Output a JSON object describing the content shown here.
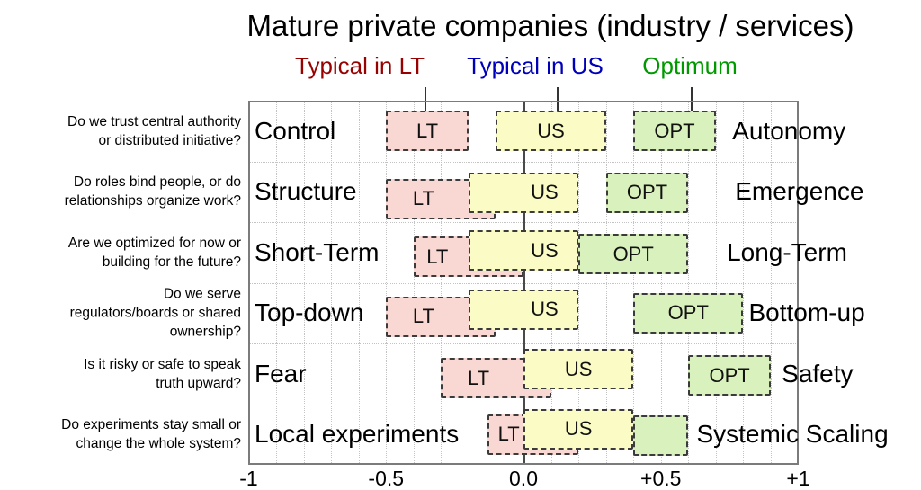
{
  "chart_data": {
    "type": "range-bar",
    "title": "Mature private companies (industry / services)",
    "x_axis": {
      "min": -1,
      "max": 1,
      "tick_values": [
        -1,
        -0.5,
        0,
        0.5,
        1
      ],
      "tick_labels": [
        "-1",
        "-0.5",
        "0.0",
        "+0.5",
        "+1"
      ],
      "grid": "dotted vertical lines every 0.1, dotted horizontal row separators",
      "zero_line": true
    },
    "legend": [
      {
        "series": "LT",
        "label": "Typical in LT",
        "color": "#990000"
      },
      {
        "series": "US",
        "label": "Typical in US",
        "color": "#0000bb"
      },
      {
        "series": "OPT",
        "label": "Optimum",
        "color": "#009900"
      }
    ],
    "legend_leader_lines_x": [
      -0.36,
      0.12,
      0.61
    ],
    "series_styles": {
      "LT": {
        "fill": "#f9d8d3",
        "border": "#3b3b3b"
      },
      "US": {
        "fill": "#fbfbc6",
        "border": "#3b3b3b"
      },
      "OPT": {
        "fill": "#d9f1bd",
        "border": "#3b3b3b"
      }
    },
    "rows": [
      {
        "question": [
          "Do we trust central authority",
          "or distributed initiative?"
        ],
        "left_label": "Control",
        "right_label": "Autonomy",
        "right_label_x": 0.76,
        "boxes": [
          {
            "series": "LT",
            "label": "LT",
            "start": -0.5,
            "end": -0.2,
            "dy": 0
          },
          {
            "series": "US",
            "label": "US",
            "start": -0.1,
            "end": 0.3,
            "dy": 0
          },
          {
            "series": "OPT",
            "label": "OPT",
            "start": 0.4,
            "end": 0.7,
            "dy": 0
          }
        ]
      },
      {
        "question": [
          "Do roles bind people, or do",
          "relationships organize work?"
        ],
        "left_label": "Structure",
        "right_label": "Emergence",
        "right_label_x": 0.77,
        "boxes": [
          {
            "series": "LT",
            "label": "LT",
            "start": -0.5,
            "end": -0.1,
            "dy": 8,
            "label_x": -0.37
          },
          {
            "series": "US",
            "label": "US",
            "start": -0.2,
            "end": 0.2,
            "dy": 1,
            "label_x": 0.07
          },
          {
            "series": "OPT",
            "label": "OPT",
            "start": 0.3,
            "end": 0.6,
            "dy": 1
          }
        ]
      },
      {
        "question": [
          "Are we optimized for now or",
          "building for the future?"
        ],
        "left_label": "Short-Term",
        "right_label": "Long-Term",
        "right_label_x": 0.74,
        "boxes": [
          {
            "series": "LT",
            "label": "LT",
            "start": -0.4,
            "end": 0.0,
            "dy": 5,
            "label_x": -0.32
          },
          {
            "series": "US",
            "label": "US",
            "start": -0.2,
            "end": 0.2,
            "dy": -2,
            "label_x": 0.07
          },
          {
            "series": "OPT",
            "label": "OPT",
            "start": 0.2,
            "end": 0.6,
            "dy": 2
          }
        ]
      },
      {
        "question": [
          "Do we serve",
          "regulators/boards or shared",
          "ownership?"
        ],
        "left_label": "Top-down",
        "right_label": "Bottom-up",
        "right_label_x": 0.82,
        "boxes": [
          {
            "series": "LT",
            "label": "LT",
            "start": -0.5,
            "end": -0.1,
            "dy": 4,
            "label_x": -0.37
          },
          {
            "series": "US",
            "label": "US",
            "start": -0.2,
            "end": 0.2,
            "dy": -4,
            "label_x": 0.07
          },
          {
            "series": "OPT",
            "label": "OPT",
            "start": 0.4,
            "end": 0.8,
            "dy": 0
          }
        ]
      },
      {
        "question": [
          "Is it risky or safe to speak",
          "truth upward?"
        ],
        "left_label": "Fear",
        "right_label": "Safety",
        "right_label_x": 0.94,
        "boxes": [
          {
            "series": "LT",
            "label": "LT",
            "start": -0.3,
            "end": 0.1,
            "dy": 5,
            "label_x": -0.17
          },
          {
            "series": "US",
            "label": "US",
            "start": 0.0,
            "end": 0.4,
            "dy": -5
          },
          {
            "series": "OPT",
            "label": "OPT",
            "start": 0.6,
            "end": 0.9,
            "dy": 2
          }
        ]
      },
      {
        "question": [
          "Do experiments stay small or",
          "change the whole system?"
        ],
        "left_label": "Local experiments",
        "right_label": "Systemic Scaling",
        "right_label_x": 0.63,
        "boxes": [
          {
            "series": "LT",
            "label": "LT",
            "start": -0.13,
            "end": 0.2,
            "dy": 0,
            "label_x": -0.06
          },
          {
            "series": "US",
            "label": "US",
            "start": 0.0,
            "end": 0.4,
            "dy": -6
          },
          {
            "series": "OPT",
            "label": "",
            "start": 0.4,
            "end": 0.6,
            "dy": 1
          }
        ]
      }
    ]
  }
}
